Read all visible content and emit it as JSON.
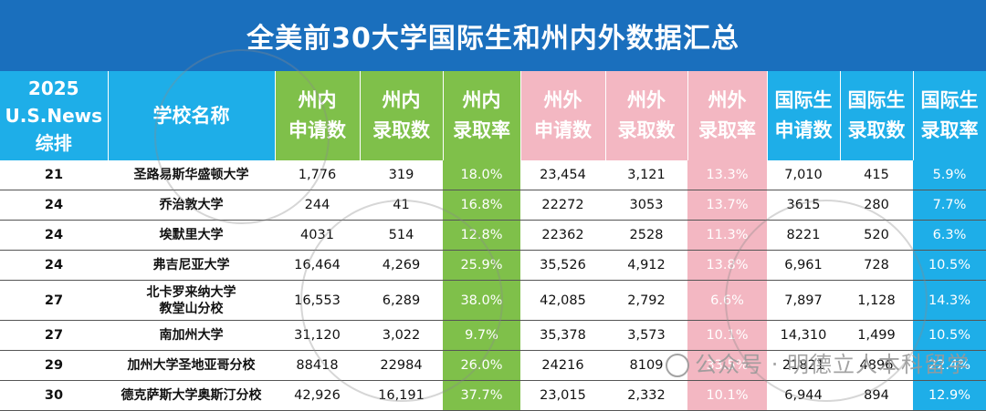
{
  "title": "全美前30大学国际生和州内外数据汇总",
  "header": {
    "rank": [
      "2025",
      "U.S.News",
      "综排"
    ],
    "name": "学校名称",
    "cols": [
      [
        "州内",
        "申请数"
      ],
      [
        "州内",
        "录取数"
      ],
      [
        "州内",
        "录取率"
      ],
      [
        "州外",
        "申请数"
      ],
      [
        "州外",
        "录取数"
      ],
      [
        "州外",
        "录取率"
      ],
      [
        "国际生",
        "申请数"
      ],
      [
        "国际生",
        "录取数"
      ],
      [
        "国际生",
        "录取率"
      ]
    ]
  },
  "colors": {
    "title_bg": "#1a6fbd",
    "green": "#7fc04a",
    "pink": "#f3b7c2",
    "blue": "#1eaee8"
  },
  "rows": [
    {
      "rank": "21",
      "name": [
        "圣路易斯华盛顿大学"
      ],
      "v": [
        "1,776",
        "319",
        "18.0%",
        "23,454",
        "3,121",
        "13.3%",
        "7,010",
        "415",
        "5.9%"
      ]
    },
    {
      "rank": "24",
      "name": [
        "乔治敦大学"
      ],
      "v": [
        "244",
        "41",
        "16.8%",
        "22272",
        "3053",
        "13.7%",
        "3615",
        "280",
        "7.7%"
      ]
    },
    {
      "rank": "24",
      "name": [
        "埃默里大学"
      ],
      "v": [
        "4031",
        "514",
        "12.8%",
        "22362",
        "2528",
        "11.3%",
        "8221",
        "520",
        "6.3%"
      ]
    },
    {
      "rank": "24",
      "name": [
        "弗吉尼亚大学"
      ],
      "v": [
        "16,464",
        "4,269",
        "25.9%",
        "35,526",
        "4,912",
        "13.8%",
        "6,961",
        "728",
        "10.5%"
      ]
    },
    {
      "rank": "27",
      "name": [
        "北卡罗来纳大学",
        "教堂山分校"
      ],
      "v": [
        "16,553",
        "6,289",
        "38.0%",
        "42,085",
        "2,792",
        "6.6%",
        "7,897",
        "1,128",
        "14.3%"
      ]
    },
    {
      "rank": "27",
      "name": [
        "南加州大学"
      ],
      "v": [
        "31,120",
        "3,022",
        "9.7%",
        "35,378",
        "3,573",
        "10.1%",
        "14,310",
        "1,499",
        "10.5%"
      ]
    },
    {
      "rank": "29",
      "name": [
        "加州大学圣地亚哥分校"
      ],
      "v": [
        "88418",
        "22984",
        "26.0%",
        "24216",
        "8109",
        "33.5%",
        "21821",
        "4896",
        "22.4%"
      ]
    },
    {
      "rank": "30",
      "name": [
        "德克萨斯大学奥斯汀分校"
      ],
      "v": [
        "42,926",
        "16,191",
        "37.7%",
        "23,015",
        "2,332",
        "10.1%",
        "6,944",
        "894",
        "12.9%"
      ]
    }
  ],
  "watermark": "公众号 · 明德立人本科留学",
  "chart_data": {
    "type": "table",
    "title": "全美前30大学国际生和州内外数据汇总",
    "columns": [
      "2025 U.S.News 综排",
      "学校名称",
      "州内申请数",
      "州内录取数",
      "州内录取率",
      "州外申请数",
      "州外录取数",
      "州外录取率",
      "国际生申请数",
      "国际生录取数",
      "国际生录取率"
    ],
    "rows": [
      [
        "21",
        "圣路易斯华盛顿大学",
        "1,776",
        "319",
        "18.0%",
        "23,454",
        "3,121",
        "13.3%",
        "7,010",
        "415",
        "5.9%"
      ],
      [
        "24",
        "乔治敦大学",
        "244",
        "41",
        "16.8%",
        "22272",
        "3053",
        "13.7%",
        "3615",
        "280",
        "7.7%"
      ],
      [
        "24",
        "埃默里大学",
        "4031",
        "514",
        "12.8%",
        "22362",
        "2528",
        "11.3%",
        "8221",
        "520",
        "6.3%"
      ],
      [
        "24",
        "弗吉尼亚大学",
        "16,464",
        "4,269",
        "25.9%",
        "35,526",
        "4,912",
        "13.8%",
        "6,961",
        "728",
        "10.5%"
      ],
      [
        "27",
        "北卡罗来纳大学教堂山分校",
        "16,553",
        "6,289",
        "38.0%",
        "42,085",
        "2,792",
        "6.6%",
        "7,897",
        "1,128",
        "14.3%"
      ],
      [
        "27",
        "南加州大学",
        "31,120",
        "3,022",
        "9.7%",
        "35,378",
        "3,573",
        "10.1%",
        "14,310",
        "1,499",
        "10.5%"
      ],
      [
        "29",
        "加州大学圣地亚哥分校",
        "88418",
        "22984",
        "26.0%",
        "24216",
        "8109",
        "33.5%",
        "21821",
        "4896",
        "22.4%"
      ],
      [
        "30",
        "德克萨斯大学奥斯汀分校",
        "42,926",
        "16,191",
        "37.7%",
        "23,015",
        "2,332",
        "10.1%",
        "6,944",
        "894",
        "12.9%"
      ]
    ]
  }
}
